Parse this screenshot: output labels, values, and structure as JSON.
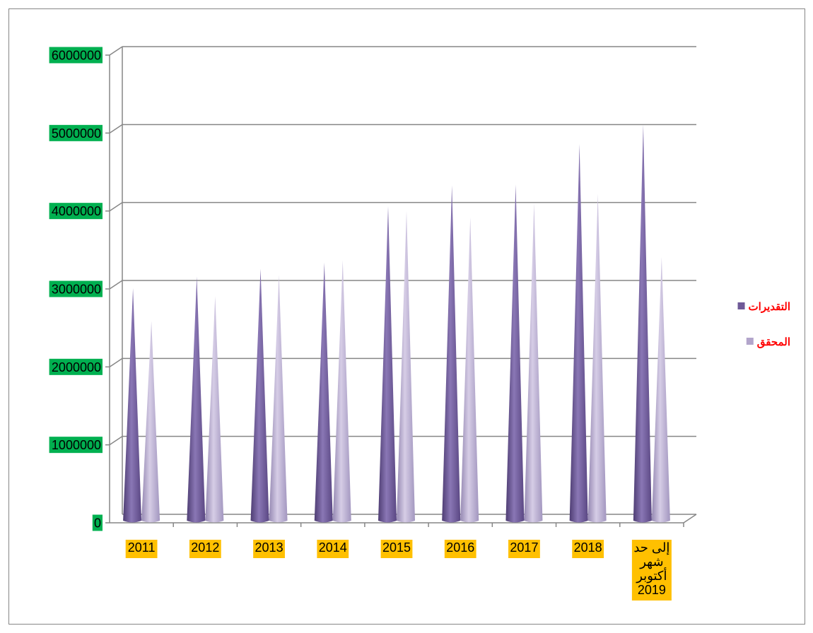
{
  "chart_data": {
    "type": "bar",
    "categories": [
      "2011",
      "2012",
      "2013",
      "2014",
      "2015",
      "2016",
      "2017",
      "2018",
      [
        "إلى حد",
        "شهر",
        "أكتوبر",
        "2019"
      ]
    ],
    "series": [
      {
        "name": "التقديرات",
        "color": "#6f5a98",
        "values": [
          2900000,
          3050000,
          3150000,
          3230000,
          3950000,
          4220000,
          4230000,
          4750000,
          5000000
        ]
      },
      {
        "name": "المحقق",
        "color": "#b2a5cb",
        "values": [
          2480000,
          2800000,
          3070000,
          3260000,
          3890000,
          3810000,
          3990000,
          4110000,
          3300000
        ]
      }
    ],
    "yticks": [
      "0",
      "1000000",
      "2000000",
      "3000000",
      "4000000",
      "5000000",
      "6000000"
    ],
    "ylim": [
      0,
      6000000
    ],
    "grid": true,
    "legend_position": "right",
    "shape": "cone-3d"
  }
}
